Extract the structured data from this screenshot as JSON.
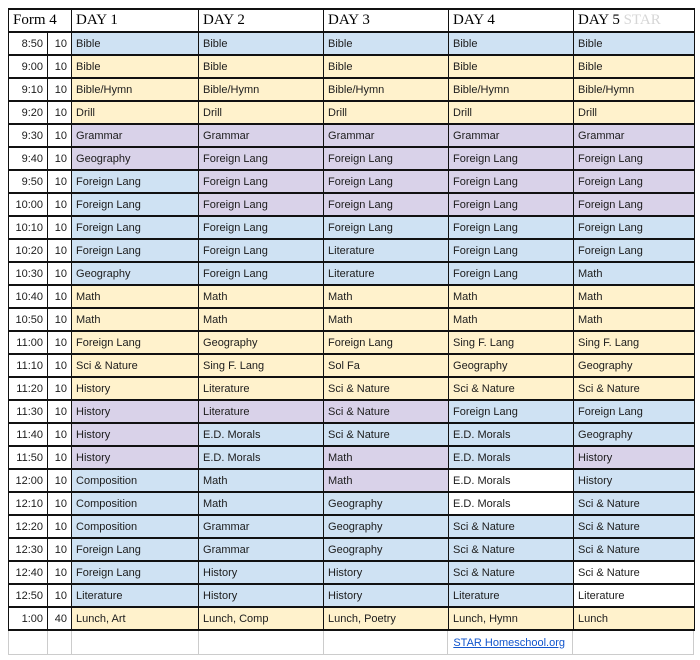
{
  "header": {
    "form_label": "Form 4",
    "days": [
      "DAY 1",
      "DAY 2",
      "DAY 3",
      "DAY 4",
      "DAY 5"
    ],
    "day5_suffix": "STAR"
  },
  "colors": {
    "blue": "#cfe2f3",
    "purple": "#d9d2e9",
    "yellow": "#fff2cc",
    "white": "#ffffff"
  },
  "footer": {
    "link_text": "STAR Homeschool.org",
    "link_color": "#1155cc"
  },
  "rows": [
    {
      "time": "8:50",
      "duration": "10",
      "cells": [
        {
          "text": "Bible",
          "color": "blue"
        },
        {
          "text": "Bible",
          "color": "blue"
        },
        {
          "text": "Bible",
          "color": "blue"
        },
        {
          "text": "Bible",
          "color": "blue"
        },
        {
          "text": "Bible",
          "color": "blue"
        }
      ]
    },
    {
      "time": "9:00",
      "duration": "10",
      "cells": [
        {
          "text": "Bible",
          "color": "yellow"
        },
        {
          "text": "Bible",
          "color": "yellow"
        },
        {
          "text": "Bible",
          "color": "yellow"
        },
        {
          "text": "Bible",
          "color": "yellow"
        },
        {
          "text": "Bible",
          "color": "yellow"
        }
      ]
    },
    {
      "time": "9:10",
      "duration": "10",
      "cells": [
        {
          "text": "Bible/Hymn",
          "color": "yellow"
        },
        {
          "text": "Bible/Hymn",
          "color": "yellow"
        },
        {
          "text": "Bible/Hymn",
          "color": "yellow"
        },
        {
          "text": "Bible/Hymn",
          "color": "yellow"
        },
        {
          "text": "Bible/Hymn",
          "color": "yellow"
        }
      ]
    },
    {
      "time": "9:20",
      "duration": "10",
      "cells": [
        {
          "text": "Drill",
          "color": "yellow"
        },
        {
          "text": "Drill",
          "color": "yellow"
        },
        {
          "text": "Drill",
          "color": "yellow"
        },
        {
          "text": "Drill",
          "color": "yellow"
        },
        {
          "text": "Drill",
          "color": "yellow"
        }
      ]
    },
    {
      "time": "9:30",
      "duration": "10",
      "cells": [
        {
          "text": "Grammar",
          "color": "purple"
        },
        {
          "text": "Grammar",
          "color": "purple"
        },
        {
          "text": "Grammar",
          "color": "purple"
        },
        {
          "text": "Grammar",
          "color": "purple"
        },
        {
          "text": "Grammar",
          "color": "purple"
        }
      ]
    },
    {
      "time": "9:40",
      "duration": "10",
      "cells": [
        {
          "text": "Geography",
          "color": "purple"
        },
        {
          "text": "Foreign Lang",
          "color": "purple"
        },
        {
          "text": "Foreign Lang",
          "color": "purple"
        },
        {
          "text": "Foreign Lang",
          "color": "purple"
        },
        {
          "text": "Foreign Lang",
          "color": "purple"
        }
      ]
    },
    {
      "time": "9:50",
      "duration": "10",
      "cells": [
        {
          "text": "Foreign Lang",
          "color": "blue"
        },
        {
          "text": "Foreign Lang",
          "color": "purple"
        },
        {
          "text": "Foreign Lang",
          "color": "purple"
        },
        {
          "text": "Foreign Lang",
          "color": "purple"
        },
        {
          "text": "Foreign Lang",
          "color": "purple"
        }
      ]
    },
    {
      "time": "10:00",
      "duration": "10",
      "cells": [
        {
          "text": "Foreign Lang",
          "color": "blue"
        },
        {
          "text": "Foreign Lang",
          "color": "purple"
        },
        {
          "text": "Foreign Lang",
          "color": "purple"
        },
        {
          "text": "Foreign Lang",
          "color": "purple"
        },
        {
          "text": "Foreign Lang",
          "color": "purple"
        }
      ]
    },
    {
      "time": "10:10",
      "duration": "10",
      "cells": [
        {
          "text": "Foreign Lang",
          "color": "blue"
        },
        {
          "text": "Foreign Lang",
          "color": "blue"
        },
        {
          "text": "Foreign Lang",
          "color": "blue"
        },
        {
          "text": "Foreign Lang",
          "color": "blue"
        },
        {
          "text": "Foreign Lang",
          "color": "blue"
        }
      ]
    },
    {
      "time": "10:20",
      "duration": "10",
      "cells": [
        {
          "text": "Foreign Lang",
          "color": "blue"
        },
        {
          "text": "Foreign Lang",
          "color": "blue"
        },
        {
          "text": "Literature",
          "color": "blue"
        },
        {
          "text": "Foreign Lang",
          "color": "blue"
        },
        {
          "text": "Foreign Lang",
          "color": "blue"
        }
      ]
    },
    {
      "time": "10:30",
      "duration": "10",
      "cells": [
        {
          "text": "Geography",
          "color": "blue"
        },
        {
          "text": "Foreign Lang",
          "color": "blue"
        },
        {
          "text": "Literature",
          "color": "blue"
        },
        {
          "text": "Foreign Lang",
          "color": "blue"
        },
        {
          "text": "Math",
          "color": "blue"
        }
      ]
    },
    {
      "time": "10:40",
      "duration": "10",
      "cells": [
        {
          "text": "Math",
          "color": "yellow"
        },
        {
          "text": "Math",
          "color": "yellow"
        },
        {
          "text": "Math",
          "color": "yellow"
        },
        {
          "text": "Math",
          "color": "yellow"
        },
        {
          "text": "Math",
          "color": "yellow"
        }
      ]
    },
    {
      "time": "10:50",
      "duration": "10",
      "cells": [
        {
          "text": "Math",
          "color": "yellow"
        },
        {
          "text": "Math",
          "color": "yellow"
        },
        {
          "text": "Math",
          "color": "yellow"
        },
        {
          "text": "Math",
          "color": "yellow"
        },
        {
          "text": "Math",
          "color": "yellow"
        }
      ]
    },
    {
      "time": "11:00",
      "duration": "10",
      "cells": [
        {
          "text": "Foreign Lang",
          "color": "yellow"
        },
        {
          "text": "Geography",
          "color": "yellow"
        },
        {
          "text": "Foreign Lang",
          "color": "yellow"
        },
        {
          "text": "Sing F. Lang",
          "color": "yellow"
        },
        {
          "text": "Sing F. Lang",
          "color": "yellow"
        }
      ]
    },
    {
      "time": "11:10",
      "duration": "10",
      "cells": [
        {
          "text": "Sci & Nature",
          "color": "yellow"
        },
        {
          "text": "Sing F. Lang",
          "color": "yellow"
        },
        {
          "text": "Sol Fa",
          "color": "yellow"
        },
        {
          "text": "Geography",
          "color": "yellow"
        },
        {
          "text": "Geography",
          "color": "yellow"
        }
      ]
    },
    {
      "time": "11:20",
      "duration": "10",
      "cells": [
        {
          "text": "History",
          "color": "yellow"
        },
        {
          "text": "Literature",
          "color": "yellow"
        },
        {
          "text": "Sci & Nature",
          "color": "yellow"
        },
        {
          "text": "Sci & Nature",
          "color": "yellow"
        },
        {
          "text": "Sci & Nature",
          "color": "yellow"
        }
      ]
    },
    {
      "time": "11:30",
      "duration": "10",
      "cells": [
        {
          "text": "History",
          "color": "purple"
        },
        {
          "text": "Literature",
          "color": "purple"
        },
        {
          "text": "Sci & Nature",
          "color": "purple"
        },
        {
          "text": "Foreign Lang",
          "color": "blue"
        },
        {
          "text": "Foreign Lang",
          "color": "blue"
        }
      ]
    },
    {
      "time": "11:40",
      "duration": "10",
      "cells": [
        {
          "text": "History",
          "color": "purple"
        },
        {
          "text": "E.D. Morals",
          "color": "blue"
        },
        {
          "text": "Sci & Nature",
          "color": "blue"
        },
        {
          "text": "E.D. Morals",
          "color": "blue"
        },
        {
          "text": "Geography",
          "color": "blue"
        }
      ]
    },
    {
      "time": "11:50",
      "duration": "10",
      "cells": [
        {
          "text": "History",
          "color": "purple"
        },
        {
          "text": "E.D. Morals",
          "color": "blue"
        },
        {
          "text": "Math",
          "color": "purple"
        },
        {
          "text": "E.D. Morals",
          "color": "blue"
        },
        {
          "text": "History",
          "color": "purple"
        }
      ]
    },
    {
      "time": "12:00",
      "duration": "10",
      "cells": [
        {
          "text": "Composition",
          "color": "blue"
        },
        {
          "text": "Math",
          "color": "blue"
        },
        {
          "text": "Math",
          "color": "purple"
        },
        {
          "text": "E.D. Morals",
          "color": "white"
        },
        {
          "text": "History",
          "color": "blue"
        }
      ]
    },
    {
      "time": "12:10",
      "duration": "10",
      "cells": [
        {
          "text": "Composition",
          "color": "blue"
        },
        {
          "text": "Math",
          "color": "blue"
        },
        {
          "text": "Geography",
          "color": "blue"
        },
        {
          "text": "E.D. Morals",
          "color": "white"
        },
        {
          "text": "Sci & Nature",
          "color": "blue"
        }
      ]
    },
    {
      "time": "12:20",
      "duration": "10",
      "cells": [
        {
          "text": "Composition",
          "color": "blue"
        },
        {
          "text": "Grammar",
          "color": "blue"
        },
        {
          "text": "Geography",
          "color": "blue"
        },
        {
          "text": "Sci & Nature",
          "color": "blue"
        },
        {
          "text": "Sci & Nature",
          "color": "blue"
        }
      ]
    },
    {
      "time": "12:30",
      "duration": "10",
      "cells": [
        {
          "text": "Foreign Lang",
          "color": "blue"
        },
        {
          "text": "Grammar",
          "color": "blue"
        },
        {
          "text": "Geography",
          "color": "blue"
        },
        {
          "text": "Sci & Nature",
          "color": "blue"
        },
        {
          "text": "Sci & Nature",
          "color": "blue"
        }
      ]
    },
    {
      "time": "12:40",
      "duration": "10",
      "cells": [
        {
          "text": "Foreign Lang",
          "color": "blue"
        },
        {
          "text": "History",
          "color": "blue"
        },
        {
          "text": "History",
          "color": "blue"
        },
        {
          "text": "Sci & Nature",
          "color": "blue"
        },
        {
          "text": "Sci & Nature",
          "color": "white"
        }
      ]
    },
    {
      "time": "12:50",
      "duration": "10",
      "cells": [
        {
          "text": "Literature",
          "color": "blue"
        },
        {
          "text": "History",
          "color": "blue"
        },
        {
          "text": "History",
          "color": "blue"
        },
        {
          "text": "Literature",
          "color": "blue"
        },
        {
          "text": "Literature",
          "color": "white"
        }
      ]
    },
    {
      "time": "1:00",
      "duration": "40",
      "cells": [
        {
          "text": "Lunch, Art",
          "color": "yellow"
        },
        {
          "text": "Lunch, Comp",
          "color": "yellow"
        },
        {
          "text": "Lunch, Poetry",
          "color": "yellow"
        },
        {
          "text": "Lunch, Hymn",
          "color": "yellow"
        },
        {
          "text": "Lunch",
          "color": "yellow"
        }
      ]
    }
  ]
}
